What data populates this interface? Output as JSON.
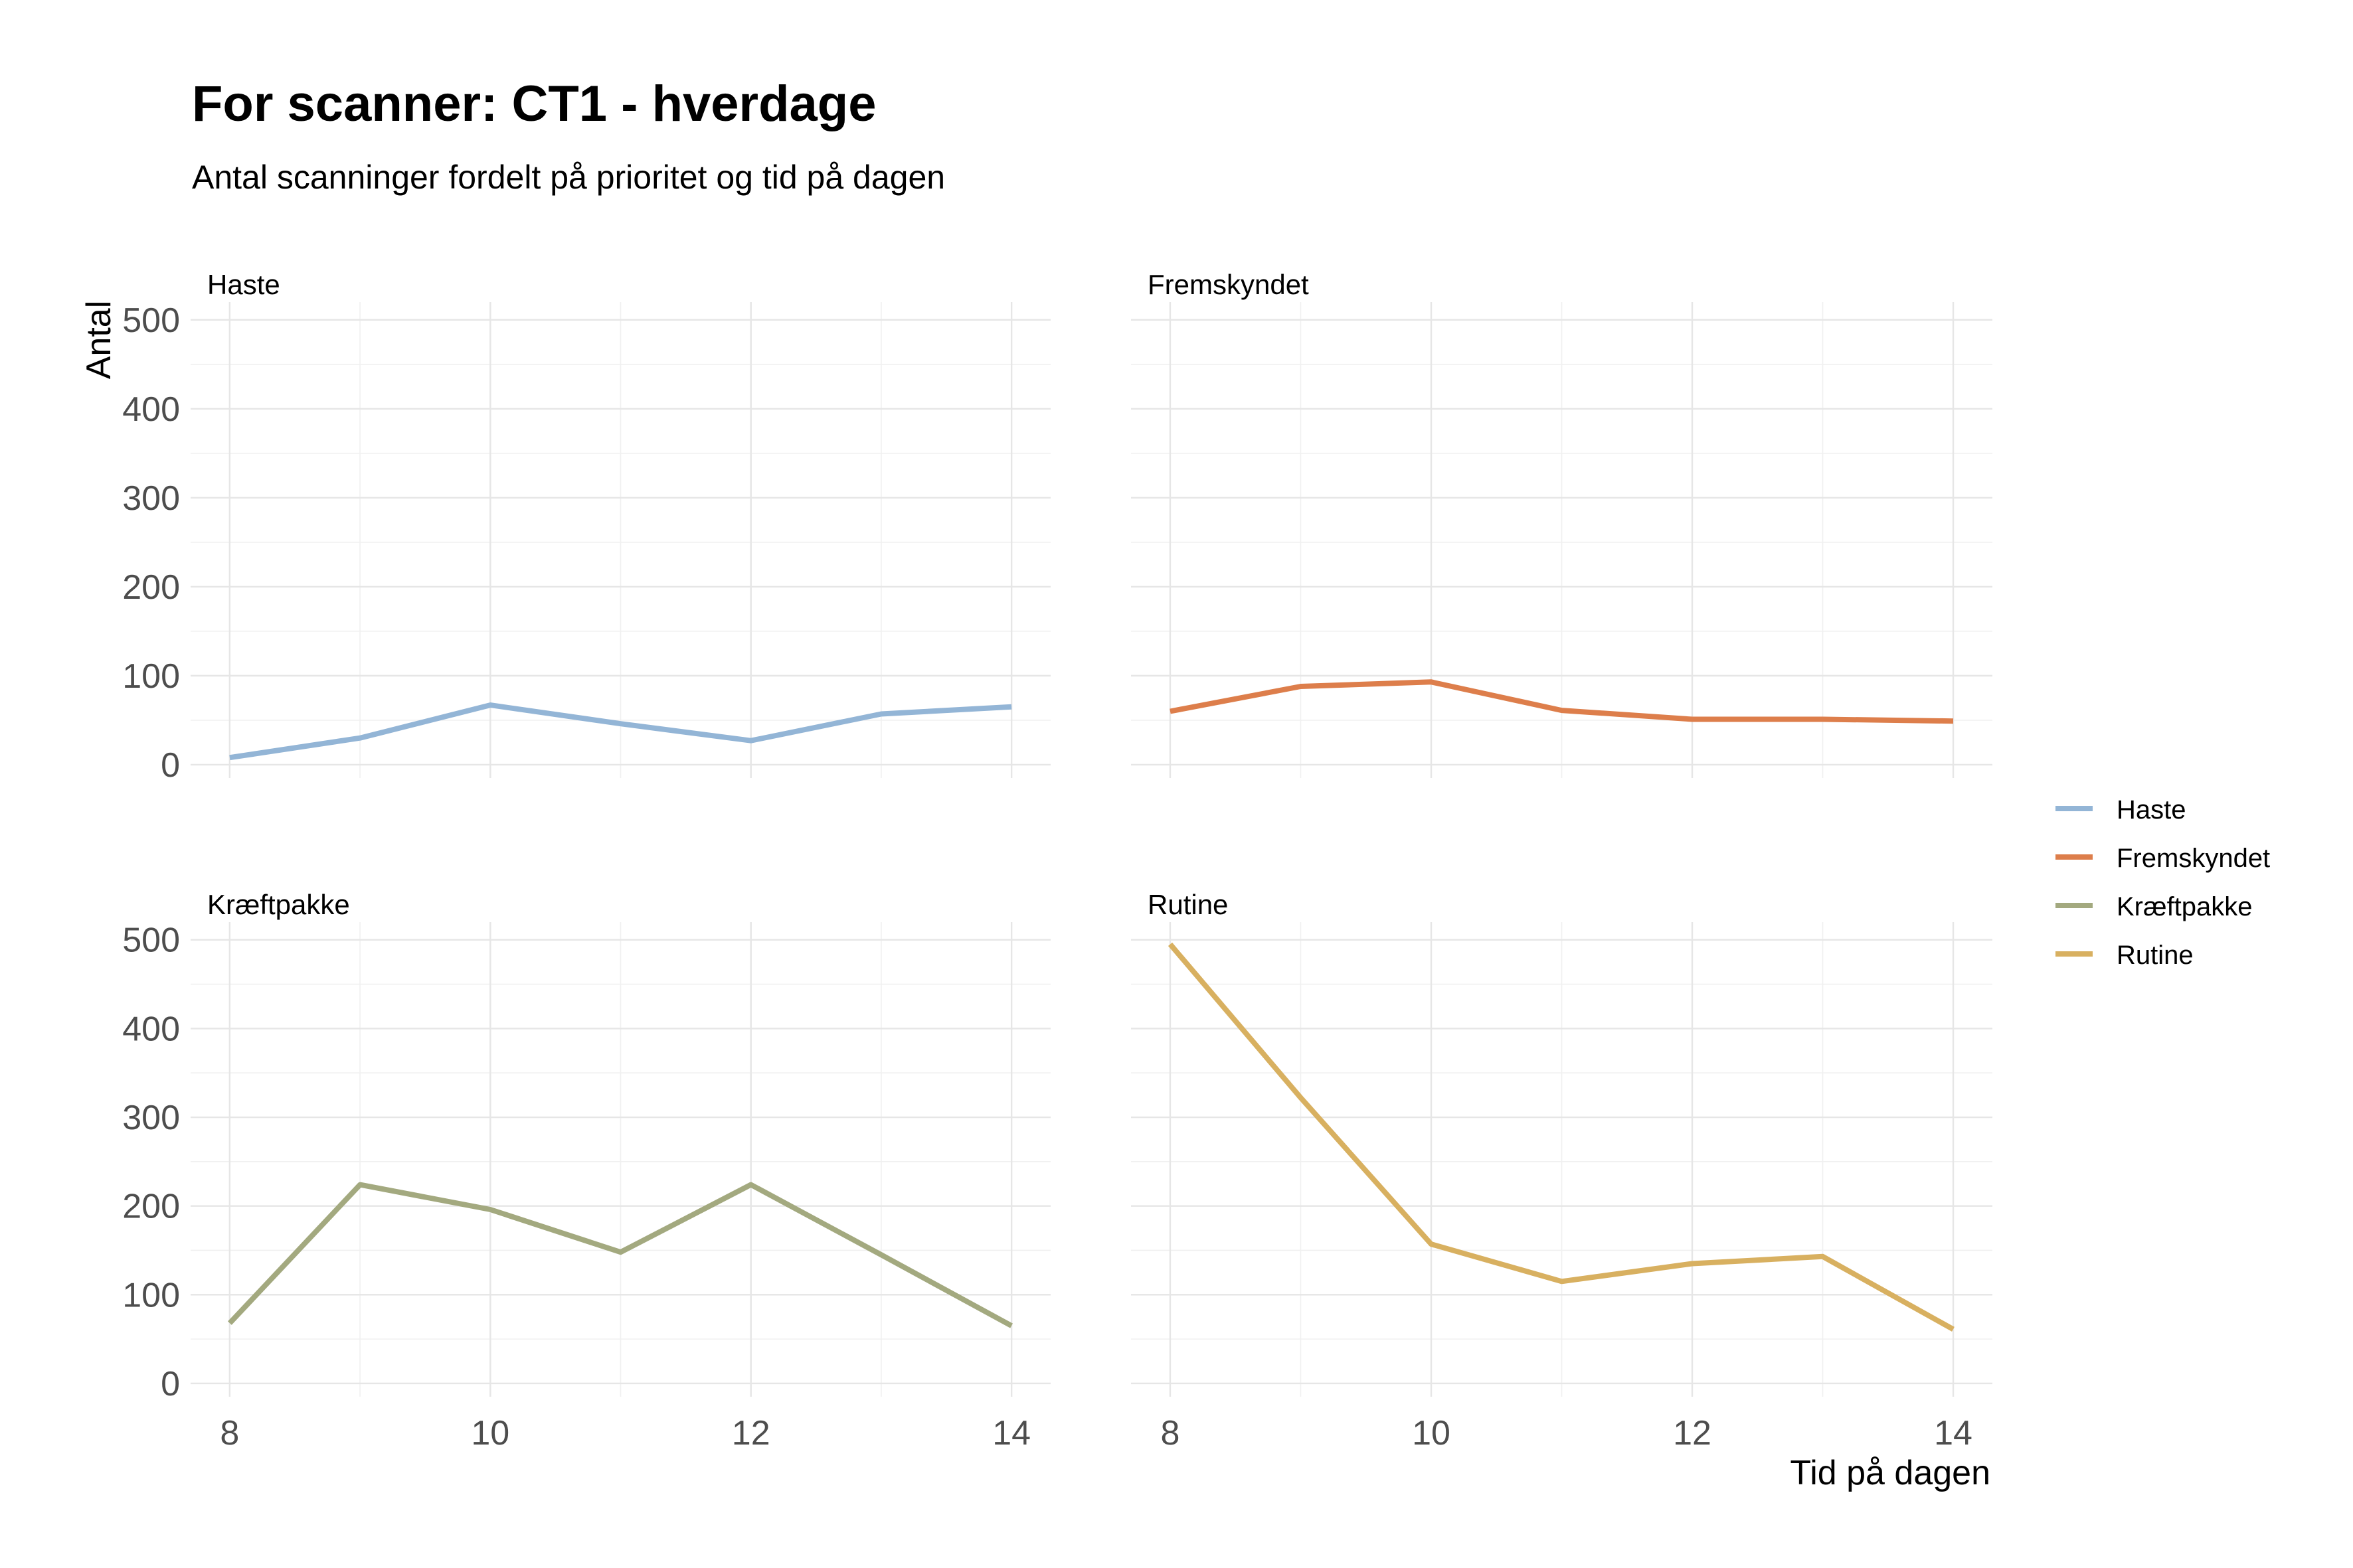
{
  "title": "For scanner: CT1 - hverdage",
  "subtitle": "Antal scanninger fordelt på prioritet og tid på dagen",
  "chart_data": {
    "type": "line",
    "xlabel": "Tid på dagen",
    "ylabel": "Antal",
    "x": [
      8,
      9,
      10,
      11,
      12,
      13,
      14
    ],
    "xlim": [
      7.7,
      14.3
    ],
    "ylim": [
      -15,
      520
    ],
    "x_ticks": [
      "8",
      "10",
      "12",
      "14"
    ],
    "y_ticks": [
      "0",
      "100",
      "200",
      "300",
      "400",
      "500"
    ],
    "grid": true,
    "legend_position": "right",
    "series": [
      {
        "name": "Haste",
        "color": "#93b5d6",
        "values": [
          8,
          30,
          67,
          46,
          27,
          57,
          65
        ]
      },
      {
        "name": "Fremskyndet",
        "color": "#dd7e4b",
        "values": [
          60,
          88,
          93,
          61,
          51,
          51,
          49
        ]
      },
      {
        "name": "Kræftpakke",
        "color": "#a3a97f",
        "values": [
          68,
          224,
          196,
          148,
          224,
          145,
          65
        ]
      },
      {
        "name": "Rutine",
        "color": "#d8b060",
        "values": [
          495,
          322,
          157,
          115,
          135,
          143,
          61
        ]
      }
    ]
  }
}
